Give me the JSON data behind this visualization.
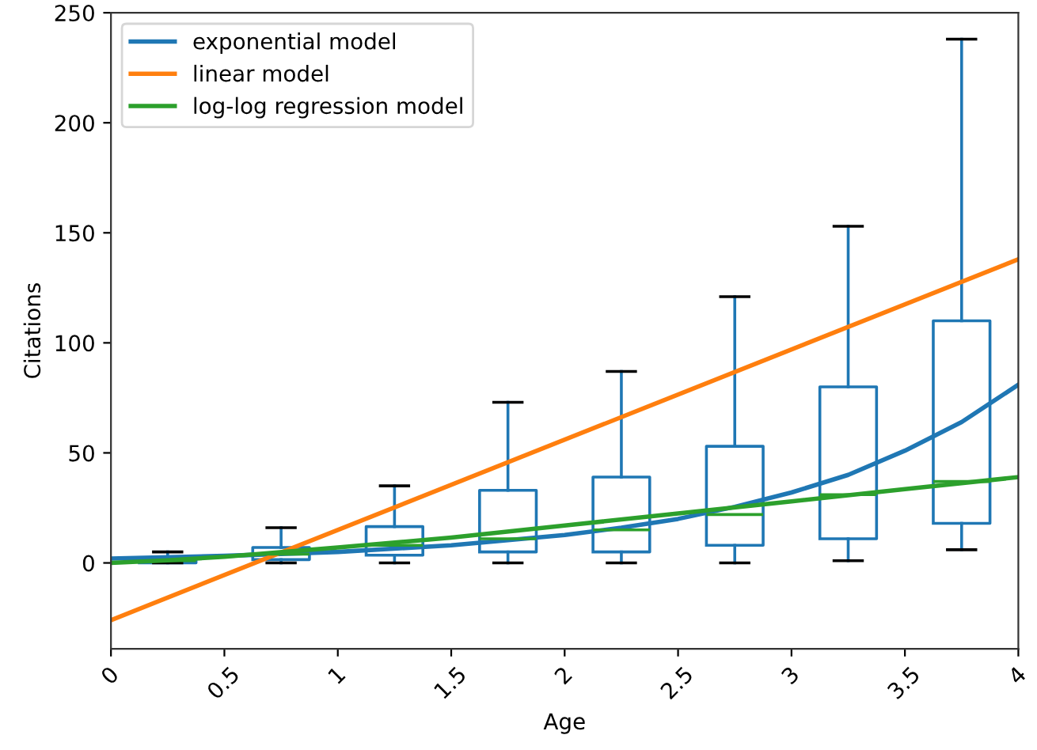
{
  "chart_data": {
    "type": "box",
    "xlabel": "Age",
    "ylabel": "Citations",
    "xlim": [
      0,
      4
    ],
    "ylim": [
      -39,
      250
    ],
    "xticks": [
      0,
      0.5,
      1,
      1.5,
      2,
      2.5,
      3,
      3.5,
      4
    ],
    "yticks": [
      0,
      50,
      100,
      150,
      200,
      250
    ],
    "grid": false,
    "legend": "top left",
    "series": [
      {
        "color": "#1f77b4",
        "x": [
          0.25,
          0.75,
          1.25,
          1.75,
          2.25,
          2.75,
          3.25,
          3.75
        ],
        "boxes": [
          {
            "low": 0,
            "q1": 0,
            "median": 1,
            "q3": 2,
            "high": 5
          },
          {
            "low": 0,
            "q1": 1.5,
            "median": 4,
            "q3": 7,
            "high": 16
          },
          {
            "low": 0,
            "q1": 3.5,
            "median": 8,
            "q3": 16.5,
            "high": 35
          },
          {
            "low": 0,
            "q1": 5,
            "median": 11,
            "q3": 33,
            "high": 73
          },
          {
            "low": 0,
            "q1": 5,
            "median": 15,
            "q3": 39,
            "high": 87
          },
          {
            "low": 0,
            "q1": 8,
            "median": 22,
            "q3": 53,
            "high": 121
          },
          {
            "low": 1,
            "q1": 11,
            "median": 31,
            "q3": 80,
            "high": 153
          },
          {
            "low": 6,
            "q1": 18,
            "median": 37,
            "q3": 110,
            "high": 238
          }
        ]
      },
      {
        "type": "line",
        "name": "exponential model",
        "color": "#1f77b4",
        "x": [
          0,
          0.5,
          1,
          1.5,
          2,
          2.25,
          2.5,
          2.75,
          3,
          3.25,
          3.5,
          3.75,
          4
        ],
        "values": [
          2,
          3.2,
          5,
          8,
          12.7,
          16,
          20,
          25.5,
          32,
          40,
          51,
          64,
          81
        ]
      },
      {
        "type": "line",
        "name": "linear model",
        "color": "#ff7f0e",
        "x": [
          0,
          4
        ],
        "values": [
          -26,
          138
        ]
      },
      {
        "type": "line",
        "name": "log-log regression model",
        "color": "#2ca02c",
        "x": [
          0,
          0.25,
          0.5,
          1,
          1.5,
          2,
          2.5,
          3,
          3.5,
          4
        ],
        "values": [
          0,
          1.2,
          2.8,
          7,
          11.5,
          17,
          22.5,
          28,
          33.5,
          39
        ]
      }
    ]
  }
}
